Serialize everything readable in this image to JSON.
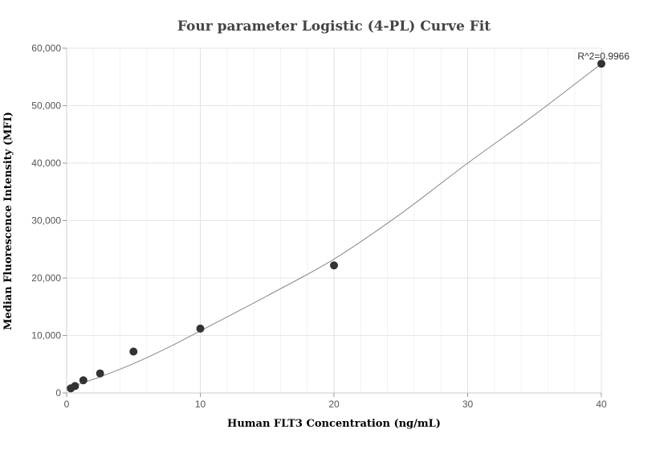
{
  "chart_data": {
    "type": "scatter",
    "title": "Four parameter Logistic (4-PL) Curve Fit",
    "xlabel": "Human FLT3 Concentration (ng/mL)",
    "ylabel": "Median Fluorescence Intensity (MFI)",
    "xlim": [
      0,
      40
    ],
    "ylim": [
      0,
      60000
    ],
    "x_ticks": [
      0,
      10,
      20,
      30,
      40
    ],
    "x_tick_labels": [
      "0",
      "10",
      "20",
      "30",
      "40"
    ],
    "y_ticks": [
      0,
      10000,
      20000,
      30000,
      40000,
      50000,
      60000
    ],
    "y_tick_labels": [
      "0",
      "10,000",
      "20,000",
      "30,000",
      "40,000",
      "50,000",
      "60,000"
    ],
    "grid": true,
    "annotation": "R^2=0.9966",
    "series": [
      {
        "type": "scatter",
        "x": [
          0.3125,
          0.625,
          1.25,
          2.5,
          5,
          10,
          20,
          40
        ],
        "y": [
          800,
          1200,
          2200,
          3400,
          7200,
          11200,
          22200,
          57300
        ]
      },
      {
        "type": "line",
        "x": [
          0,
          0.625,
          1.25,
          2.5,
          5,
          7.5,
          10,
          15,
          20,
          25,
          30,
          35,
          40
        ],
        "y": [
          1000,
          1300,
          1800,
          2800,
          5100,
          7800,
          10800,
          16900,
          23300,
          31200,
          40000,
          48400,
          57300
        ]
      }
    ],
    "colors": {
      "point": "#333333",
      "curve": "#888888",
      "grid": "#e6e6e6",
      "axis": "#cccccc"
    }
  }
}
